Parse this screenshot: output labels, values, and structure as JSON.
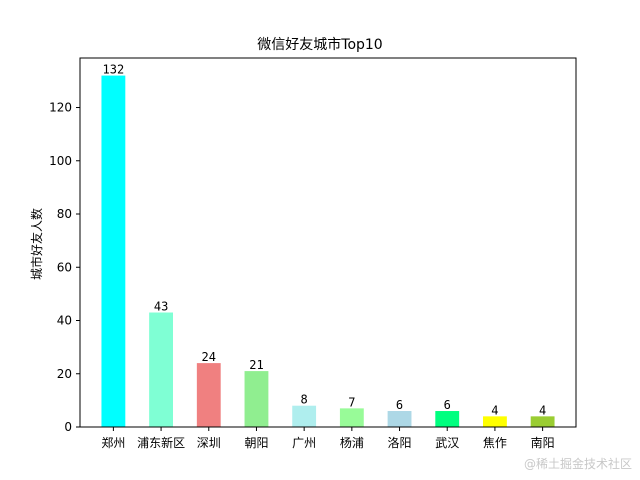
{
  "chart_data": {
    "type": "bar",
    "title": "微信好友城市Top10",
    "xlabel": "",
    "ylabel": "城市好友人数",
    "categories": [
      "郑州",
      "浦东新区",
      "深圳",
      "朝阳",
      "广州",
      "杨浦",
      "洛阳",
      "武汉",
      "焦作",
      "南阳"
    ],
    "values": [
      132,
      43,
      24,
      21,
      8,
      7,
      6,
      6,
      4,
      4
    ],
    "colors": [
      "#00ffff",
      "#7fffd4",
      "#f08080",
      "#90ee90",
      "#afeeee",
      "#98fb98",
      "#add8e6",
      "#00ff7f",
      "#ffff00",
      "#9acd32"
    ],
    "ylim": [
      0,
      138.6
    ],
    "yticks": [
      0,
      20,
      40,
      60,
      80,
      100,
      120
    ],
    "grid": false,
    "legend": "none"
  },
  "watermark": "@稀土掘金技术社区"
}
